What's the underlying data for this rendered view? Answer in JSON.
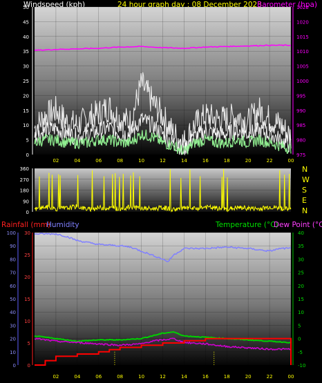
{
  "header": {
    "windspeed_label": "Windspeed (kph)",
    "title": "24 hour graph day : 08 December 2023",
    "barometer_label": "Barometer (hpa)",
    "rainfall_label": "Rainfall (mm)",
    "humidity_label": "Humidity",
    "temperature_label": "Temperature (°C)",
    "dewpoint_label": "Dew Point (°C)"
  },
  "colors": {
    "windspeed": "#ffffff",
    "windgust": "#e8e8e8",
    "windavg": "#90ee90",
    "barometer": "#ff00ff",
    "direction": "#ffff00",
    "rain": "#ff0000",
    "humidity": "#8080ff",
    "temperature": "#00d000",
    "dewpoint": "#d000d0",
    "title": "#ffff00",
    "axis_left": "#ff4040"
  },
  "chart_data": [
    {
      "type": "line",
      "title": "Windspeed / Barometer",
      "x_ticks": [
        "02",
        "04",
        "06",
        "08",
        "10",
        "12",
        "14",
        "16",
        "18",
        "20",
        "22",
        "00"
      ],
      "left_axis": {
        "label": "Windspeed (kph)",
        "ticks": [
          0,
          5,
          10,
          15,
          20,
          25,
          30,
          35,
          40,
          45,
          50
        ],
        "ylim": [
          0,
          50
        ]
      },
      "right_axis": {
        "label": "Barometer (hpa)",
        "ticks": [
          975,
          980,
          985,
          990,
          995,
          1000,
          1005,
          1010,
          1015,
          1020,
          1025
        ],
        "ylim": [
          975,
          1025
        ]
      },
      "grid": true,
      "series": [
        {
          "role": "gust",
          "x": [
            0,
            1,
            2,
            3,
            4,
            5,
            6,
            7,
            8,
            9,
            10,
            11,
            12,
            13,
            14,
            15,
            16,
            17,
            18,
            19,
            20,
            21,
            22,
            23,
            24
          ],
          "values": [
            9,
            13,
            15,
            11,
            10,
            12,
            14,
            16,
            12,
            11,
            24,
            18,
            13,
            7,
            4,
            10,
            13,
            12,
            12,
            13,
            11,
            15,
            12,
            10,
            6
          ]
        },
        {
          "role": "speed",
          "x": [
            0,
            1,
            2,
            3,
            4,
            5,
            6,
            7,
            8,
            9,
            10,
            11,
            12,
            13,
            14,
            15,
            16,
            17,
            18,
            19,
            20,
            21,
            22,
            23,
            24
          ],
          "values": [
            6,
            8,
            9,
            7,
            6,
            7,
            8,
            9,
            7,
            7,
            12,
            10,
            7,
            4,
            2,
            6,
            8,
            7,
            7,
            8,
            7,
            8,
            7,
            5,
            3
          ]
        },
        {
          "role": "average",
          "x": [
            0,
            1,
            2,
            3,
            4,
            5,
            6,
            7,
            8,
            9,
            10,
            11,
            12,
            13,
            14,
            15,
            16,
            17,
            18,
            19,
            20,
            21,
            22,
            23,
            24
          ],
          "values": [
            4,
            5,
            5,
            4,
            4,
            4,
            5,
            5,
            4,
            4,
            7,
            6,
            4,
            3,
            1,
            4,
            5,
            4,
            4,
            5,
            4,
            5,
            4,
            3,
            2
          ]
        },
        {
          "role": "barometer",
          "x": [
            0,
            2,
            4,
            6,
            8,
            10,
            12,
            14,
            16,
            18,
            20,
            22,
            24
          ],
          "values": [
            1010.3,
            1010.6,
            1010.8,
            1011.0,
            1011.4,
            1011.6,
            1011.2,
            1011.0,
            1011.4,
            1011.6,
            1011.8,
            1012.0,
            1012.0
          ]
        }
      ]
    },
    {
      "type": "scatter",
      "title": "Wind direction",
      "x_ticks": [],
      "left_axis": {
        "ticks": [
          0,
          90,
          180,
          270,
          360
        ],
        "ylim": [
          0,
          360
        ]
      },
      "right_axis": {
        "ticks": [
          "N",
          "W",
          "S",
          "E",
          "N"
        ]
      },
      "series": [
        {
          "role": "direction",
          "x": [
            0,
            1,
            2,
            3,
            4,
            5,
            6,
            7,
            8,
            9,
            10,
            11,
            12,
            13,
            14,
            15,
            16,
            17,
            18,
            19,
            20,
            21,
            22,
            23,
            24
          ],
          "values": [
            20,
            40,
            25,
            30,
            45,
            20,
            35,
            30,
            25,
            40,
            30,
            25,
            35,
            20,
            30,
            25,
            40,
            30,
            20,
            35,
            30,
            25,
            40,
            30,
            20
          ]
        }
      ]
    },
    {
      "type": "line",
      "title": "Rainfall / Humidity / Temperature / Dew Point",
      "x_ticks": [
        "02",
        "04",
        "06",
        "08",
        "10",
        "12",
        "14",
        "16",
        "18",
        "20",
        "22",
        "00"
      ],
      "left_axis_rain": {
        "label": "Rainfall (mm)",
        "ticks": [
          0,
          5,
          10,
          15,
          20,
          25,
          30
        ],
        "ylim": [
          0,
          30
        ]
      },
      "left_axis_humidity": {
        "label": "Humidity",
        "ticks": [
          0,
          10,
          20,
          30,
          40,
          50,
          60,
          70,
          80,
          90,
          100
        ],
        "ylim": [
          0,
          100
        ]
      },
      "right_axis": {
        "label": "Temperature (°C)",
        "ticks": [
          -10,
          -5,
          0,
          5,
          10,
          15,
          20,
          25,
          30,
          35,
          40
        ],
        "ylim": [
          -10,
          40
        ]
      },
      "grid": true,
      "series": [
        {
          "role": "humidity",
          "x": [
            0,
            2,
            3,
            4,
            6,
            8,
            9,
            10,
            11,
            12,
            12.5,
            13,
            14,
            16,
            18,
            20,
            22,
            23,
            24
          ],
          "values": [
            99,
            99,
            97,
            94,
            91,
            90,
            89,
            86,
            83,
            80,
            78,
            83,
            88,
            88,
            89,
            88,
            86,
            88,
            88
          ]
        },
        {
          "role": "temperature",
          "x": [
            0,
            2,
            4,
            6,
            8,
            10,
            11,
            12,
            13,
            14,
            16,
            18,
            20,
            22,
            24
          ],
          "values": [
            1,
            0,
            -1,
            -0.5,
            -0.5,
            0,
            1,
            2,
            2.5,
            1,
            0.5,
            0,
            -0.5,
            -1,
            -1.5
          ]
        },
        {
          "role": "dewpoint",
          "x": [
            0,
            2,
            4,
            6,
            8,
            10,
            11,
            12,
            13,
            14,
            16,
            18,
            20,
            22,
            24
          ],
          "values": [
            0,
            -1,
            -1.5,
            -2,
            -2.5,
            -2,
            -1,
            -0.5,
            0,
            -1.5,
            -2,
            -3,
            -3.5,
            -4,
            -4
          ]
        },
        {
          "role": "rain",
          "x": [
            0,
            1,
            2,
            4,
            6,
            7,
            8,
            10,
            12,
            14,
            16,
            18,
            20,
            22,
            23.8,
            24
          ],
          "values": [
            0,
            1,
            2,
            2.5,
            3,
            3.5,
            4,
            4.5,
            5,
            5.5,
            6,
            6,
            6,
            6,
            6,
            0
          ]
        }
      ]
    }
  ]
}
